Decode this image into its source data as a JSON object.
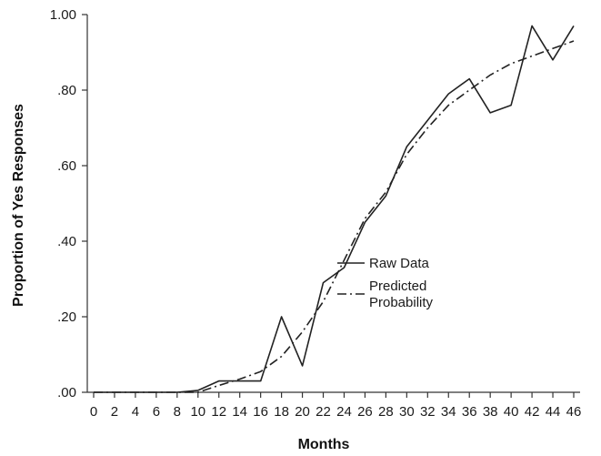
{
  "chart_data": {
    "type": "line",
    "xlabel": "Months",
    "ylabel": "Proportion of Yes Responses",
    "x": [
      0,
      2,
      4,
      6,
      8,
      10,
      12,
      14,
      16,
      18,
      20,
      22,
      24,
      26,
      28,
      30,
      32,
      34,
      36,
      38,
      40,
      42,
      44,
      46
    ],
    "x_tick_labels": [
      "0",
      "2",
      "4",
      "6",
      "8",
      "10",
      "12",
      "14",
      "16",
      "18",
      "20",
      "22",
      "24",
      "26",
      "28",
      "30",
      "32",
      "34",
      "36",
      "38",
      "40",
      "42",
      "44",
      "46"
    ],
    "xlim": [
      0,
      46
    ],
    "ylim": [
      0,
      1.0
    ],
    "y_ticks": [
      0,
      0.2,
      0.4,
      0.6,
      0.8,
      1.0
    ],
    "y_tick_labels": [
      ".00",
      ".20",
      ".40",
      ".60",
      ".80",
      "1.00"
    ],
    "grid": false,
    "legend_position": "center",
    "series": [
      {
        "name": "Raw Data",
        "style": "solid",
        "color": "#222222",
        "values": [
          0.0,
          0.0,
          0.0,
          0.0,
          0.0,
          0.005,
          0.03,
          0.03,
          0.03,
          0.2,
          0.07,
          0.29,
          0.33,
          0.45,
          0.52,
          0.65,
          0.72,
          0.79,
          0.83,
          0.74,
          0.76,
          0.97,
          0.88,
          0.97
        ]
      },
      {
        "name": "Predicted\nProbability",
        "style": "dashdot",
        "color": "#222222",
        "values": [
          0.0,
          0.0,
          0.0,
          0.0,
          0.0,
          0.0,
          0.018,
          0.035,
          0.055,
          0.095,
          0.16,
          0.24,
          0.35,
          0.46,
          0.53,
          0.63,
          0.7,
          0.76,
          0.8,
          0.84,
          0.87,
          0.89,
          0.91,
          0.93
        ]
      }
    ]
  }
}
